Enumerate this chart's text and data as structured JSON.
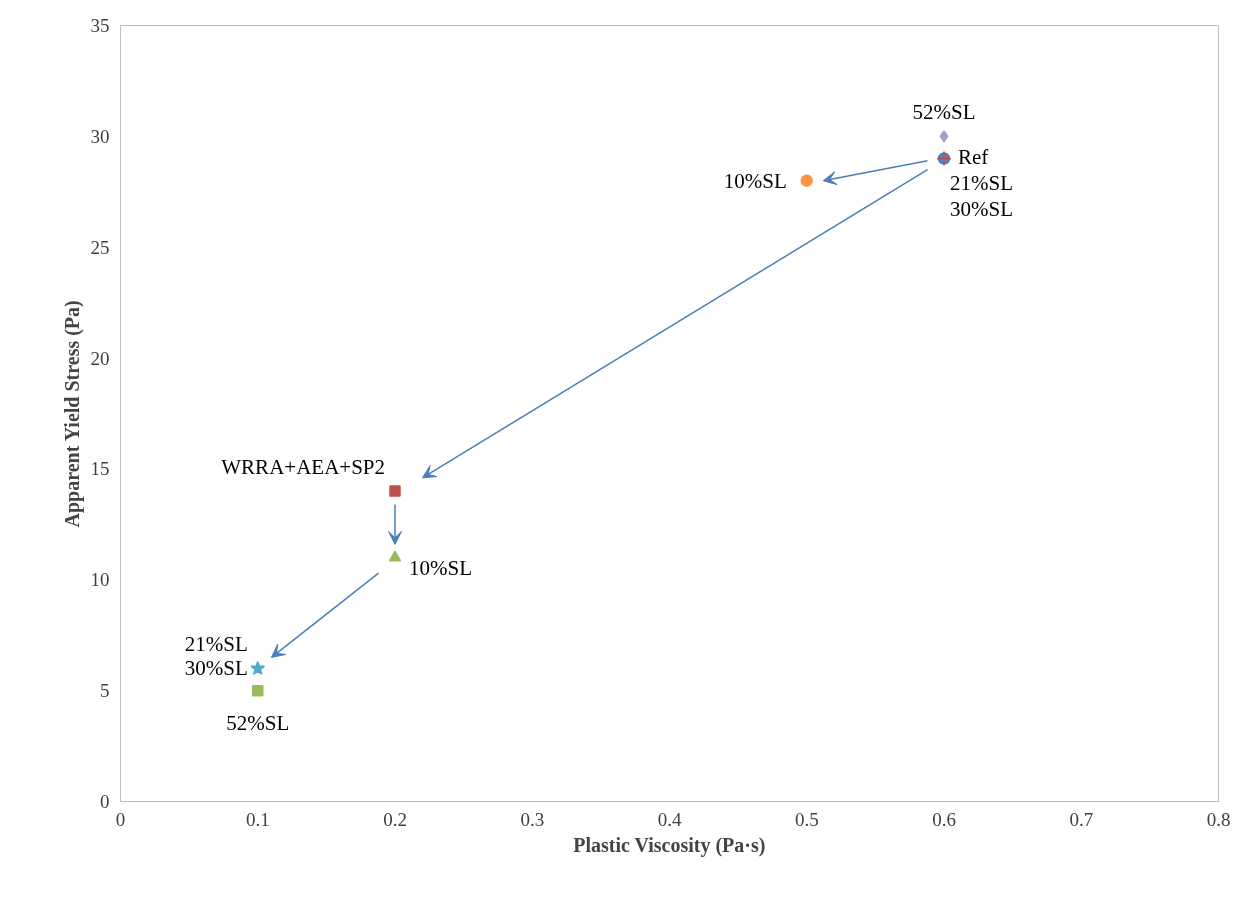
{
  "chart_data": {
    "type": "scatter",
    "xlabel": "Plastic Viscosity (Pa·s)",
    "ylabel": "Apparent Yield Stress (Pa)",
    "xlim": [
      0,
      0.8
    ],
    "xticks": [
      0,
      0.1,
      0.2,
      0.3,
      0.4,
      0.5,
      0.6,
      0.7,
      0.8
    ],
    "ylim": [
      0,
      35
    ],
    "yticks": [
      0,
      5,
      10,
      15,
      20,
      25,
      30,
      35
    ],
    "grid": false,
    "series": [
      {
        "color": "#4f81bd",
        "marker": "circle",
        "x": [
          0.6
        ],
        "values": [
          29
        ]
      },
      {
        "color": "#f79646",
        "marker": "circle",
        "x": [
          0.5
        ],
        "values": [
          28
        ]
      },
      {
        "color": "#c0504d",
        "marker": "cross",
        "x": [
          0.6
        ],
        "values": [
          29
        ]
      },
      {
        "color": "#a99bc9",
        "marker": "diamond",
        "x": [
          0.6
        ],
        "values": [
          30
        ]
      },
      {
        "color": "#c0504d",
        "marker": "square",
        "x": [
          0.2
        ],
        "values": [
          14
        ]
      },
      {
        "color": "#9bbb59",
        "marker": "triangle",
        "x": [
          0.2
        ],
        "values": [
          11
        ]
      },
      {
        "color": "#4bacc6",
        "marker": "star",
        "x": [
          0.1
        ],
        "values": [
          6
        ]
      },
      {
        "color": "#9bbb59",
        "marker": "square",
        "x": [
          0.1
        ],
        "values": [
          5
        ]
      }
    ],
    "annotations": [
      {
        "text": "52%SL",
        "x": 0.6,
        "y": 30
      },
      {
        "text": "Ref",
        "x": 0.6,
        "y": 29
      },
      {
        "text": "21%SL",
        "x": 0.6,
        "y": 29
      },
      {
        "text": "30%SL",
        "x": 0.6,
        "y": 29
      },
      {
        "text": "10%SL",
        "x": 0.5,
        "y": 28
      },
      {
        "text": "WRRA+AEA+SP2",
        "x": 0.2,
        "y": 14
      },
      {
        "text": "10%SL",
        "x": 0.2,
        "y": 11
      },
      {
        "text": "21%SL",
        "x": 0.1,
        "y": 6
      },
      {
        "text": "30%SL",
        "x": 0.1,
        "y": 6
      },
      {
        "text": "52%SL",
        "x": 0.1,
        "y": 5
      }
    ]
  }
}
